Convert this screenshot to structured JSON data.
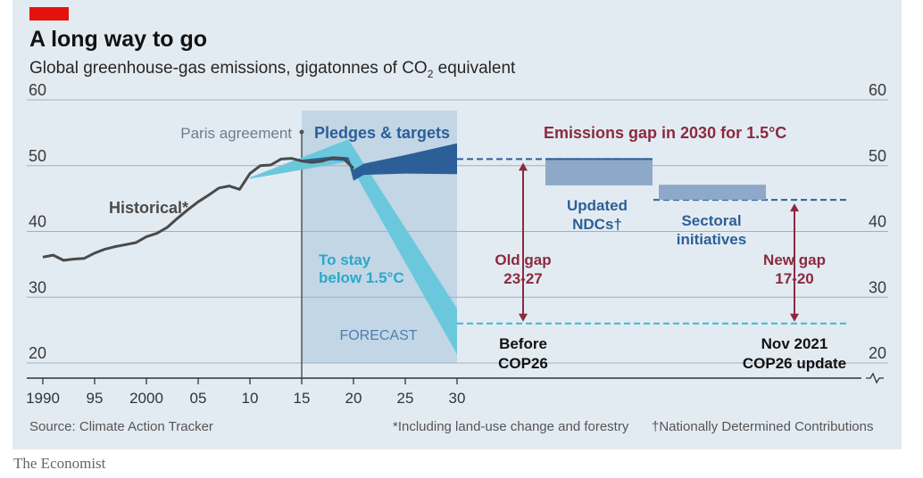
{
  "header": {
    "title": "A long way to go",
    "subtitle_prefix": "Global greenhouse-gas emissions, gigatonnes of CO",
    "subtitle_sub": "2",
    "subtitle_suffix": " equivalent"
  },
  "colors": {
    "tag": "#e3120b",
    "historical": "#4a4a4a",
    "pledges": "#2c5f98",
    "pathway": "#6bc8dc",
    "gap": "#8b2a3f",
    "shade": "#bcd2e4",
    "box": "#8ea8c8"
  },
  "footer": {
    "source": "Source: Climate Action Tracker",
    "note1": "*Including land-use change and forestry",
    "note2": "†Nationally Determined Contributions",
    "brand": "The Economist"
  },
  "chart_data": {
    "type": "line",
    "xlim": [
      1989.5,
      2030
    ],
    "ylim": [
      20,
      60
    ],
    "y_ticks": [
      20,
      30,
      40,
      50,
      60
    ],
    "x_ticks": [
      {
        "value": 1990,
        "label": "1990"
      },
      {
        "value": 1995,
        "label": "95"
      },
      {
        "value": 2000,
        "label": "2000"
      },
      {
        "value": 2005,
        "label": "05"
      },
      {
        "value": 2010,
        "label": "10"
      },
      {
        "value": 2015,
        "label": "15"
      },
      {
        "value": 2020,
        "label": "20"
      },
      {
        "value": 2025,
        "label": "25"
      },
      {
        "value": 2030,
        "label": "30"
      }
    ],
    "grid": true,
    "historical": {
      "x": [
        1990,
        1991,
        1992,
        1993,
        1994,
        1995,
        1996,
        1997,
        1998,
        1999,
        2000,
        2001,
        2002,
        2003,
        2004,
        2005,
        2006,
        2007,
        2008,
        2009,
        2010,
        2011,
        2012,
        2013,
        2014,
        2015,
        2016,
        2017,
        2018,
        2019,
        2020
      ],
      "y": [
        36.1,
        36.4,
        35.6,
        35.8,
        35.9,
        36.7,
        37.3,
        37.7,
        38.0,
        38.3,
        39.2,
        39.7,
        40.6,
        42.0,
        43.3,
        44.5,
        45.5,
        46.6,
        46.9,
        46.4,
        48.8,
        50.0,
        50.1,
        51.0,
        51.1,
        50.7,
        50.5,
        50.7,
        51.2,
        51.1,
        49.6
      ]
    },
    "pledges": {
      "x": [
        2015,
        2018,
        2019.5,
        2020,
        2021,
        2025,
        2030
      ],
      "upper": [
        50.9,
        51.4,
        51.3,
        49.4,
        50.3,
        51.6,
        53.4
      ],
      "lower": [
        50.5,
        50.8,
        50.7,
        47.7,
        48.6,
        48.8,
        48.7
      ]
    },
    "pathway_1_5": {
      "x": [
        2010,
        2019.5,
        2030
      ],
      "upper": [
        48.2,
        54.0,
        28.3
      ],
      "lower": [
        48.0,
        50.6,
        21.3
      ]
    },
    "forecast_span": [
      2015,
      2030
    ],
    "paris_year": 2015,
    "before_cop26": {
      "top": 51.0,
      "bottom": 26.0
    },
    "after_cop26": {
      "top": 44.8,
      "bottom": 26.0
    },
    "ndc_box": {
      "top": 51.0,
      "bottom": 47.0
    },
    "sectoral_box": {
      "top": 47.1,
      "bottom": 44.8
    },
    "labels": {
      "paris": "Paris agreement",
      "pledges": "Pledges & targets",
      "gap_title": "Emissions gap in 2030 for 1.5°C",
      "historical": "Historical*",
      "to_stay_1": "To stay",
      "to_stay_2": "below 1.5°C",
      "forecast": "FORECAST",
      "old_gap_1": "Old gap",
      "old_gap_2": "23-27",
      "updated_1": "Updated",
      "updated_2": "NDCs†",
      "sectoral_1": "Sectoral",
      "sectoral_2": "initiatives",
      "new_gap_1": "New gap",
      "new_gap_2": "17-20",
      "before_1": "Before",
      "before_2": "COP26",
      "nov_1": "Nov 2021",
      "nov_2": "COP26 update"
    }
  }
}
